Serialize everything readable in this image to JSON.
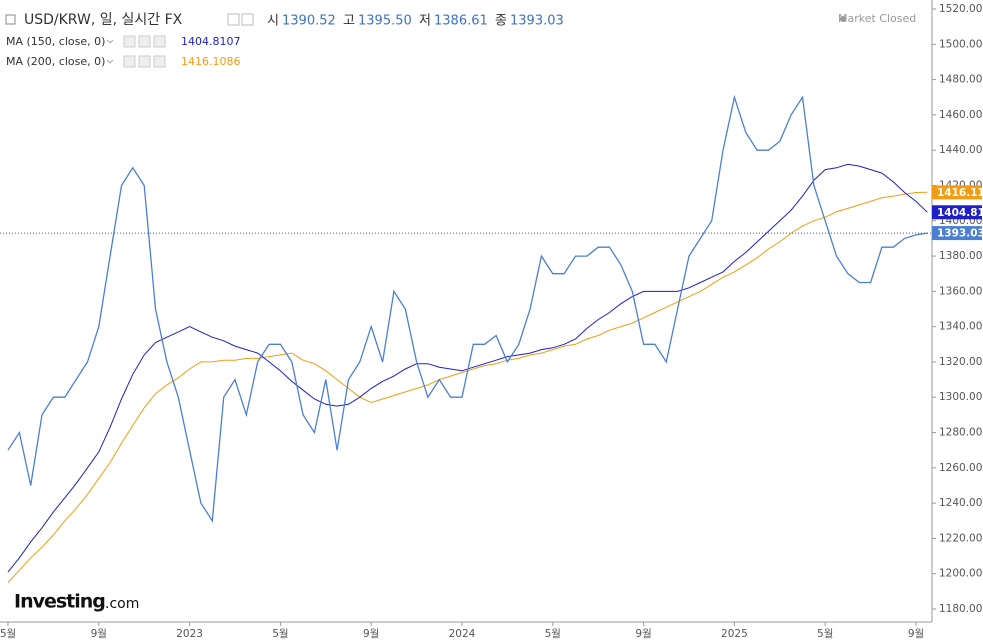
{
  "chart_data": {
    "type": "line",
    "title": "USD/KRW, 일, 실시간 FX",
    "ohlc": [
      {
        "label": "시",
        "value": "1390.52"
      },
      {
        "label": "고",
        "value": "1395.50"
      },
      {
        "label": "저",
        "value": "1386.61"
      },
      {
        "label": "종",
        "value": "1393.03"
      }
    ],
    "status": "Market Closed",
    "logo": "Investing",
    "logo_suffix": ".com",
    "categories": [
      "5월",
      null,
      null,
      null,
      null,
      null,
      null,
      null,
      "9월",
      null,
      null,
      null,
      null,
      null,
      null,
      null,
      "2023",
      null,
      null,
      null,
      null,
      null,
      null,
      null,
      "5월",
      null,
      null,
      null,
      null,
      null,
      null,
      null,
      "9월",
      null,
      null,
      null,
      null,
      null,
      null,
      null,
      "2024",
      null,
      null,
      null,
      null,
      null,
      null,
      null,
      "5월",
      null,
      null,
      null,
      null,
      null,
      null,
      null,
      "9월",
      null,
      null,
      null,
      null,
      null,
      null,
      null,
      "2025",
      null,
      null,
      null,
      null,
      null,
      null,
      null,
      "5월",
      null,
      null,
      null,
      null,
      null,
      null,
      null,
      "9월",
      null
    ],
    "series": [
      {
        "name": "USD/KRW",
        "color": "#4a7fd4",
        "value_label": "1393.03",
        "values": [
          1270,
          1280,
          1250,
          1290,
          1300,
          1300,
          1310,
          1320,
          1340,
          1380,
          1420,
          1430,
          1420,
          1350,
          1320,
          1300,
          1270,
          1240,
          1230,
          1300,
          1310,
          1290,
          1320,
          1330,
          1330,
          1320,
          1290,
          1280,
          1310,
          1270,
          1310,
          1320,
          1340,
          1320,
          1360,
          1350,
          1320,
          1300,
          1310,
          1300,
          1300,
          1330,
          1330,
          1335,
          1320,
          1330,
          1350,
          1380,
          1370,
          1370,
          1380,
          1380,
          1385,
          1385,
          1375,
          1360,
          1330,
          1330,
          1320,
          1350,
          1380,
          1390,
          1400,
          1440,
          1470,
          1450,
          1440,
          1440,
          1445,
          1460,
          1470,
          1420,
          1400,
          1380,
          1370,
          1365,
          1365,
          1385,
          1385,
          1390,
          1392,
          1393.03
        ]
      },
      {
        "name": "MA (150, close, 0)",
        "color": "#1f1fc8",
        "legend_value": "1404.8107",
        "value_label": "1404.81",
        "values": [
          1201,
          1209,
          1218,
          1226,
          1235,
          1243,
          1251,
          1260,
          1269,
          1283,
          1299,
          1313,
          1324,
          1331,
          1334,
          1337,
          1340,
          1337,
          1334,
          1332,
          1329,
          1327,
          1325,
          1320,
          1315,
          1309,
          1304,
          1299,
          1296,
          1295,
          1296,
          1300,
          1305,
          1309,
          1312,
          1316,
          1319,
          1319,
          1317,
          1316,
          1315,
          1317,
          1319,
          1321,
          1323,
          1324,
          1325,
          1327,
          1328,
          1330,
          1333,
          1339,
          1344,
          1348,
          1353,
          1357,
          1360,
          1360,
          1360,
          1360,
          1362,
          1365,
          1368,
          1371,
          1377,
          1382,
          1388,
          1394,
          1400,
          1406,
          1414,
          1423,
          1429,
          1430,
          1432,
          1431,
          1429,
          1427,
          1422,
          1416,
          1411,
          1404.8107
        ]
      },
      {
        "name": "MA (200, close, 0)",
        "color": "#f39c12",
        "legend_value": "1416.1086",
        "value_label": "1416.11",
        "values": [
          1195,
          1202,
          1209,
          1215,
          1222,
          1230,
          1237,
          1245,
          1254,
          1263,
          1274,
          1284,
          1294,
          1302,
          1307,
          1311,
          1316,
          1320,
          1320,
          1321,
          1321,
          1322,
          1322,
          1323,
          1324,
          1325,
          1321,
          1319,
          1315,
          1310,
          1305,
          1300,
          1297,
          1299,
          1301,
          1303,
          1305,
          1307,
          1310,
          1312,
          1314,
          1316,
          1318,
          1319,
          1321,
          1322,
          1324,
          1325,
          1327,
          1329,
          1330,
          1333,
          1335,
          1338,
          1340,
          1342,
          1345,
          1348,
          1351,
          1354,
          1357,
          1360,
          1364,
          1368,
          1371,
          1375,
          1379,
          1384,
          1388,
          1393,
          1397,
          1400,
          1402,
          1405,
          1407,
          1409,
          1411,
          1413,
          1414,
          1415,
          1416,
          1416.1086
        ]
      }
    ],
    "ylim": [
      1180,
      1520
    ],
    "yticks": [
      {
        "value": 1180,
        "label": "1180.00"
      },
      {
        "value": 1200,
        "label": "1200.00"
      },
      {
        "value": 1220,
        "label": "1220.00"
      },
      {
        "value": 1240,
        "label": "1240.00"
      },
      {
        "value": 1260,
        "label": "1260.00"
      },
      {
        "value": 1280,
        "label": "1280.00"
      },
      {
        "value": 1300,
        "label": "1300.00"
      },
      {
        "value": 1320,
        "label": "1320.00"
      },
      {
        "value": 1340,
        "label": "1340.00"
      },
      {
        "value": 1360,
        "label": "1360.00"
      },
      {
        "value": 1380,
        "label": "1380.00"
      },
      {
        "value": 1400,
        "label": "1400.00"
      },
      {
        "value": 1420,
        "label": "1420.00"
      },
      {
        "value": 1440,
        "label": "1440.00"
      },
      {
        "value": 1460,
        "label": "1460.00"
      },
      {
        "value": 1480,
        "label": "1480.00"
      },
      {
        "value": 1500,
        "label": "1500.00"
      },
      {
        "value": 1520,
        "label": "1520.00"
      }
    ],
    "grid": false
  }
}
